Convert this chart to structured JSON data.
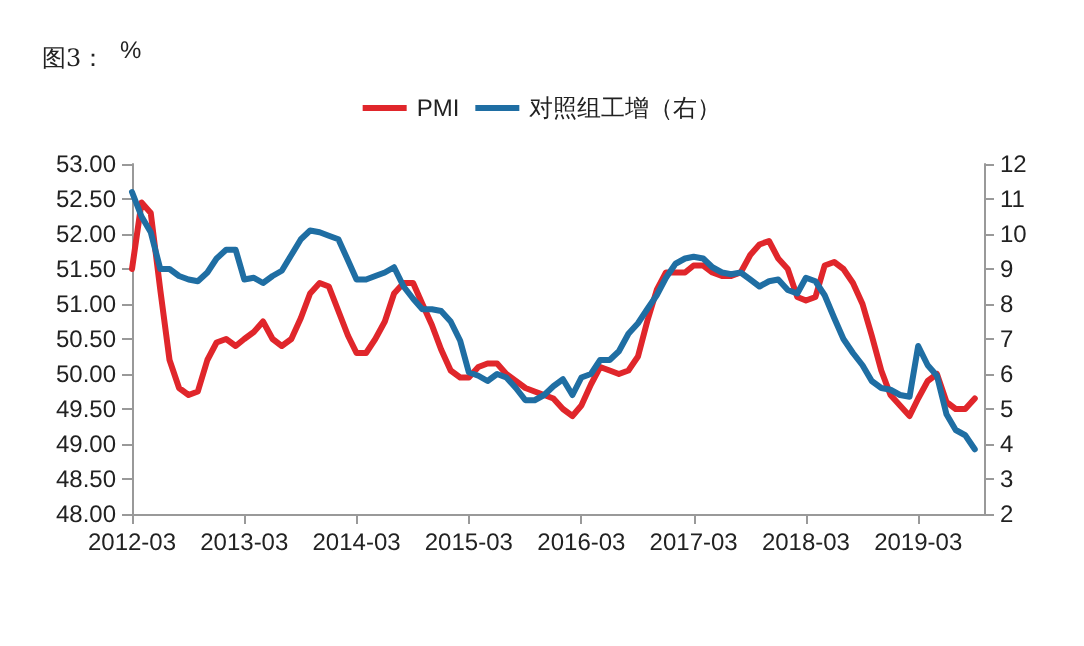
{
  "chart_data": {
    "type": "line",
    "title": "图3：",
    "ylabel": "%",
    "legend": "top",
    "marker": "none",
    "line_style": "solid",
    "grid": false,
    "x": [
      "2012-03",
      "2012-04",
      "2012-05",
      "2012-06",
      "2012-07",
      "2012-08",
      "2012-09",
      "2012-10",
      "2012-11",
      "2012-12",
      "2013-01",
      "2013-02",
      "2013-03",
      "2013-04",
      "2013-05",
      "2013-06",
      "2013-07",
      "2013-08",
      "2013-09",
      "2013-10",
      "2013-11",
      "2013-12",
      "2014-01",
      "2014-02",
      "2014-03",
      "2014-04",
      "2014-05",
      "2014-06",
      "2014-07",
      "2014-08",
      "2014-09",
      "2014-10",
      "2014-11",
      "2014-12",
      "2015-01",
      "2015-02",
      "2015-03",
      "2015-04",
      "2015-05",
      "2015-06",
      "2015-07",
      "2015-08",
      "2015-09",
      "2015-10",
      "2015-11",
      "2015-12",
      "2016-01",
      "2016-02",
      "2016-03",
      "2016-04",
      "2016-05",
      "2016-06",
      "2016-07",
      "2016-08",
      "2016-09",
      "2016-10",
      "2016-11",
      "2016-12",
      "2017-01",
      "2017-02",
      "2017-03",
      "2017-04",
      "2017-05",
      "2017-06",
      "2017-07",
      "2017-08",
      "2017-09",
      "2017-10",
      "2017-11",
      "2017-12",
      "2018-01",
      "2018-02",
      "2018-03",
      "2018-04",
      "2018-05",
      "2018-06",
      "2018-07",
      "2018-08",
      "2018-09",
      "2018-10",
      "2018-11",
      "2018-12",
      "2019-01",
      "2019-02",
      "2019-03",
      "2019-04",
      "2019-05",
      "2019-06",
      "2019-07",
      "2019-08",
      "2019-09"
    ],
    "series": [
      {
        "name": "PMI",
        "color": "#e0262b",
        "values": [
          51.5,
          52.45,
          52.3,
          51.2,
          50.2,
          49.8,
          49.7,
          49.75,
          50.2,
          50.45,
          50.5,
          50.4,
          50.5,
          50.6,
          50.75,
          50.5,
          50.4,
          50.5,
          50.8,
          51.15,
          51.3,
          51.25,
          50.9,
          50.55,
          50.3,
          50.3,
          50.5,
          50.75,
          51.15,
          51.3,
          51.3,
          51.0,
          50.7,
          50.35,
          50.05,
          49.95,
          49.95,
          50.1,
          50.15,
          50.15,
          50.0,
          49.9,
          49.8,
          49.75,
          49.7,
          49.65,
          49.5,
          49.4,
          49.55,
          49.85,
          50.1,
          50.05,
          50.0,
          50.05,
          50.25,
          50.75,
          51.2,
          51.45,
          51.45,
          51.45,
          51.55,
          51.55,
          51.45,
          51.4,
          51.4,
          51.45,
          51.7,
          51.85,
          51.9,
          51.65,
          51.5,
          51.1,
          51.05,
          51.1,
          51.55,
          51.6,
          51.5,
          51.3,
          51.0,
          50.55,
          50.05,
          49.7,
          49.55,
          49.4,
          49.65,
          49.9,
          50.0,
          49.6,
          49.5,
          49.5,
          49.65
        ]
      },
      {
        "name": "对照组工增（右）",
        "color": "#1f6ea3",
        "axis": "y2",
        "values": [
          11.2,
          10.5,
          10.05,
          9.0,
          9.0,
          8.8,
          8.7,
          8.65,
          8.9,
          9.3,
          9.55,
          9.55,
          8.7,
          8.75,
          8.6,
          8.8,
          8.95,
          9.4,
          9.85,
          10.1,
          10.05,
          9.95,
          9.85,
          9.25,
          8.7,
          8.7,
          8.8,
          8.9,
          9.05,
          8.5,
          8.15,
          7.85,
          7.85,
          7.8,
          7.5,
          6.95,
          6.05,
          5.95,
          5.8,
          6.0,
          5.9,
          5.6,
          5.25,
          5.25,
          5.4,
          5.65,
          5.85,
          5.4,
          5.9,
          6.0,
          6.4,
          6.4,
          6.65,
          7.15,
          7.45,
          7.85,
          8.25,
          8.75,
          9.15,
          9.3,
          9.35,
          9.3,
          9.05,
          8.9,
          8.85,
          8.9,
          8.7,
          8.5,
          8.65,
          8.7,
          8.4,
          8.3,
          8.75,
          8.65,
          8.25,
          7.6,
          7.0,
          6.6,
          6.25,
          5.8,
          5.6,
          5.55,
          5.4,
          5.35,
          6.8,
          6.25,
          5.95,
          4.85,
          4.4,
          4.25,
          3.85
        ]
      }
    ],
    "xlim": [
      "2012-03",
      "2019-10"
    ],
    "xticks": [
      {
        "value": "2012-03",
        "label": "2012-03"
      },
      {
        "value": "2013-03",
        "label": "2013-03"
      },
      {
        "value": "2014-03",
        "label": "2014-03"
      },
      {
        "value": "2015-03",
        "label": "2015-03"
      },
      {
        "value": "2016-03",
        "label": "2016-03"
      },
      {
        "value": "2017-03",
        "label": "2017-03"
      },
      {
        "value": "2018-03",
        "label": "2018-03"
      },
      {
        "value": "2019-03",
        "label": "2019-03"
      }
    ],
    "ylim": [
      48,
      53
    ],
    "yticks": [
      {
        "value": 48,
        "label": "48.00"
      },
      {
        "value": 48.5,
        "label": "48.50"
      },
      {
        "value": 49,
        "label": "49.00"
      },
      {
        "value": 49.5,
        "label": "49.50"
      },
      {
        "value": 50,
        "label": "50.00"
      },
      {
        "value": 50.5,
        "label": "50.50"
      },
      {
        "value": 51,
        "label": "51.00"
      },
      {
        "value": 51.5,
        "label": "51.50"
      },
      {
        "value": 52,
        "label": "52.00"
      },
      {
        "value": 52.5,
        "label": "52.50"
      },
      {
        "value": 53,
        "label": "53.00"
      }
    ],
    "y2lim": [
      2,
      12
    ],
    "y2ticks": [
      2,
      3,
      4,
      5,
      6,
      7,
      8,
      9,
      10,
      11,
      12
    ]
  }
}
